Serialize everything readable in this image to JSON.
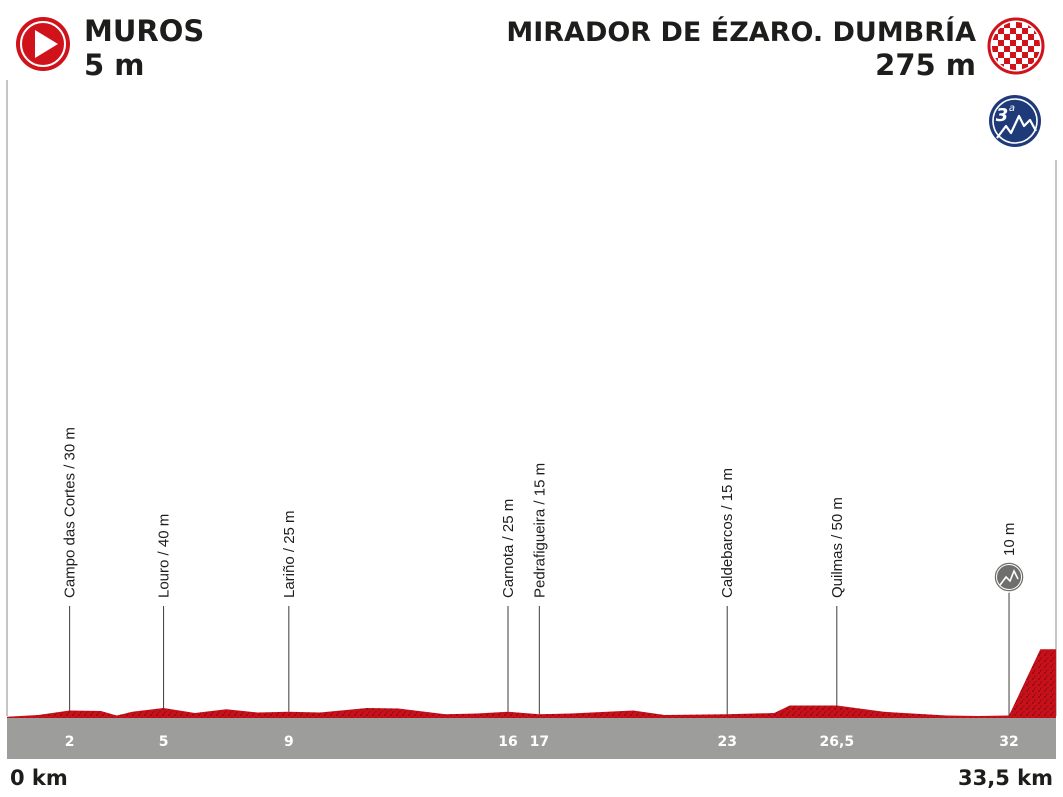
{
  "start": {
    "name": "MUROS",
    "altitude": "5 m",
    "icon": "play-icon"
  },
  "finish": {
    "name": "MIRADOR DE ÉZARO. DUMBRÍA",
    "altitude": "275 m",
    "icon": "checkered-flag-icon"
  },
  "category_badge": {
    "text": "3",
    "sup": "a",
    "icon": "mountain-icon"
  },
  "chart_data": {
    "type": "area",
    "title": "",
    "xlabel": "",
    "ylabel": "",
    "x_range_km": [
      0,
      33.5
    ],
    "start_label": "0 km",
    "end_label": "33,5 km",
    "profile": [
      {
        "km": 0,
        "alt": 5
      },
      {
        "km": 1,
        "alt": 12
      },
      {
        "km": 2,
        "alt": 30
      },
      {
        "km": 3,
        "alt": 28
      },
      {
        "km": 3.5,
        "alt": 10
      },
      {
        "km": 4,
        "alt": 25
      },
      {
        "km": 5,
        "alt": 40
      },
      {
        "km": 6,
        "alt": 20
      },
      {
        "km": 7,
        "alt": 35
      },
      {
        "km": 8,
        "alt": 22
      },
      {
        "km": 9,
        "alt": 25
      },
      {
        "km": 10,
        "alt": 22
      },
      {
        "km": 11.5,
        "alt": 40
      },
      {
        "km": 12.5,
        "alt": 38
      },
      {
        "km": 14,
        "alt": 15
      },
      {
        "km": 15,
        "alt": 18
      },
      {
        "km": 16,
        "alt": 25
      },
      {
        "km": 17,
        "alt": 15
      },
      {
        "km": 18,
        "alt": 18
      },
      {
        "km": 20,
        "alt": 30
      },
      {
        "km": 21,
        "alt": 12
      },
      {
        "km": 23,
        "alt": 15
      },
      {
        "km": 24.5,
        "alt": 20
      },
      {
        "km": 25,
        "alt": 50
      },
      {
        "km": 26.5,
        "alt": 50
      },
      {
        "km": 28,
        "alt": 25
      },
      {
        "km": 30,
        "alt": 10
      },
      {
        "km": 31,
        "alt": 8
      },
      {
        "km": 32,
        "alt": 10
      },
      {
        "km": 33,
        "alt": 275
      },
      {
        "km": 33.5,
        "alt": 275
      }
    ],
    "waypoints": [
      {
        "km": 2,
        "km_label": "2",
        "label": "Campo das Cortes / 30 m"
      },
      {
        "km": 5,
        "km_label": "5",
        "label": "Louro / 40 m"
      },
      {
        "km": 9,
        "km_label": "9",
        "label": "Lariño / 25 m"
      },
      {
        "km": 16,
        "km_label": "16",
        "label": "Carnota / 25 m"
      },
      {
        "km": 17,
        "km_label": "17",
        "label": "Pedrafigueira / 15 m"
      },
      {
        "km": 23,
        "km_label": "23",
        "label": "Caldebarcos / 15 m"
      },
      {
        "km": 26.5,
        "km_label": "26,5",
        "label": "Quilmas / 50 m"
      },
      {
        "km": 32,
        "km_label": "32",
        "label": "10 m",
        "icon": "start-of-climb-icon"
      }
    ],
    "colors": {
      "profile": "#d0121b",
      "profile_dark": "#8a0c12",
      "axis_bar": "#9d9d9c"
    }
  }
}
